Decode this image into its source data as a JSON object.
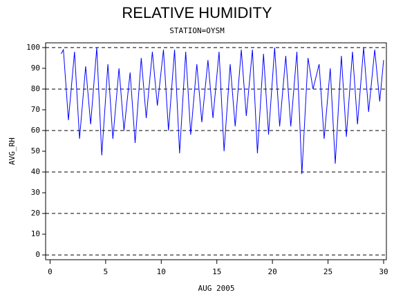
{
  "chart_data": {
    "type": "line",
    "title": "RELATIVE HUMIDITY",
    "subtitle": "STATION=OYSM",
    "x_label": "AUG 2005",
    "y_label": "AVG_RH",
    "x": [
      1.0,
      1.2,
      1.65,
      2.2,
      2.65,
      3.2,
      3.65,
      4.2,
      4.65,
      5.2,
      5.65,
      6.2,
      6.65,
      7.2,
      7.65,
      8.2,
      8.65,
      9.2,
      9.65,
      10.2,
      10.65,
      11.2,
      11.65,
      12.2,
      12.65,
      13.2,
      13.65,
      14.2,
      14.65,
      15.2,
      15.65,
      16.2,
      16.65,
      17.2,
      17.65,
      18.2,
      18.65,
      19.2,
      19.65,
      20.2,
      20.65,
      21.2,
      21.65,
      22.2,
      22.65,
      23.2,
      23.65,
      24.2,
      24.65,
      25.2,
      25.65,
      26.2,
      26.65,
      27.2,
      27.65,
      28.2,
      28.65,
      29.2,
      29.65,
      30.0
    ],
    "series": [
      {
        "name": "AVG_RH",
        "color": "#0000ff",
        "values": [
          97,
          99,
          65,
          98,
          56,
          91,
          63,
          100,
          48,
          92,
          56,
          90,
          60,
          88,
          54,
          95,
          66,
          98,
          72,
          99,
          60,
          99,
          49,
          98,
          58,
          92,
          64,
          94,
          66,
          98,
          50,
          92,
          62,
          99,
          67,
          99,
          49,
          97,
          58,
          100,
          62,
          96,
          62,
          98,
          39,
          95,
          80,
          92,
          56,
          90,
          44,
          96,
          57,
          98,
          63,
          100,
          69,
          99,
          74,
          94
        ]
      }
    ],
    "xlim": [
      -0.4,
      30.25
    ],
    "xticks": [
      0,
      5,
      10,
      15,
      20,
      25,
      30
    ],
    "ylim": [
      -2.3,
      102.3
    ],
    "yticks": [
      0,
      10,
      20,
      30,
      40,
      50,
      60,
      70,
      80,
      90,
      100
    ],
    "reference_lines": [
      0,
      20,
      40,
      60,
      80,
      100
    ]
  }
}
